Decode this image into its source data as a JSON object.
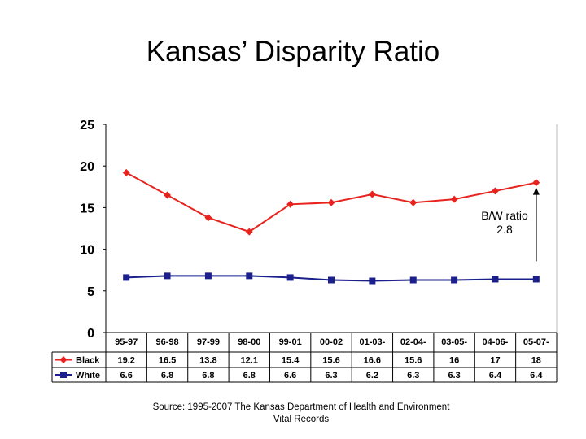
{
  "title": "Kansas’ Disparity  Ratio",
  "chart_data": {
    "type": "line",
    "title": "Kansas’ Disparity  Ratio",
    "categories": [
      "95-97",
      "96-98",
      "97-99",
      "98-00",
      "99-01",
      "00-02",
      "01-03-",
      "02-04-",
      "03-05-",
      "04-06-",
      "05-07-"
    ],
    "series": [
      {
        "name": "Black",
        "color": "#e8231e",
        "marker": "diamond",
        "values": [
          19.2,
          16.5,
          13.8,
          12.1,
          15.4,
          15.6,
          16.6,
          15.6,
          16,
          17,
          18
        ],
        "labels": [
          "19.2",
          "16.5",
          "13.8",
          "12.1",
          "15.4",
          "15.6",
          "16.6",
          "15.6",
          "16",
          "17",
          "18"
        ]
      },
      {
        "name": "White",
        "color": "#1a1f8c",
        "marker": "square",
        "values": [
          6.6,
          6.8,
          6.8,
          6.8,
          6.6,
          6.3,
          6.2,
          6.3,
          6.3,
          6.4,
          6.4
        ],
        "labels": [
          "6.6",
          "6.8",
          "6.8",
          "6.8",
          "6.6",
          "6.3",
          "6.2",
          "6.3",
          "6.3",
          "6.4",
          "6.4"
        ]
      }
    ],
    "ylim": [
      0,
      25
    ],
    "yticks": [
      "0",
      "5",
      "10",
      "15",
      "20",
      "25"
    ],
    "xlabel": "",
    "ylabel": "",
    "legend": "data-table-left",
    "grid": false,
    "annotation": {
      "lines": [
        "B/W ratio",
        "2.8"
      ],
      "arrow_from": 6.4,
      "arrow_to": 18
    }
  },
  "source": {
    "line1": "Source:  1995-2007 The Kansas Department of Health and Environment",
    "line2": "Vital Records"
  }
}
